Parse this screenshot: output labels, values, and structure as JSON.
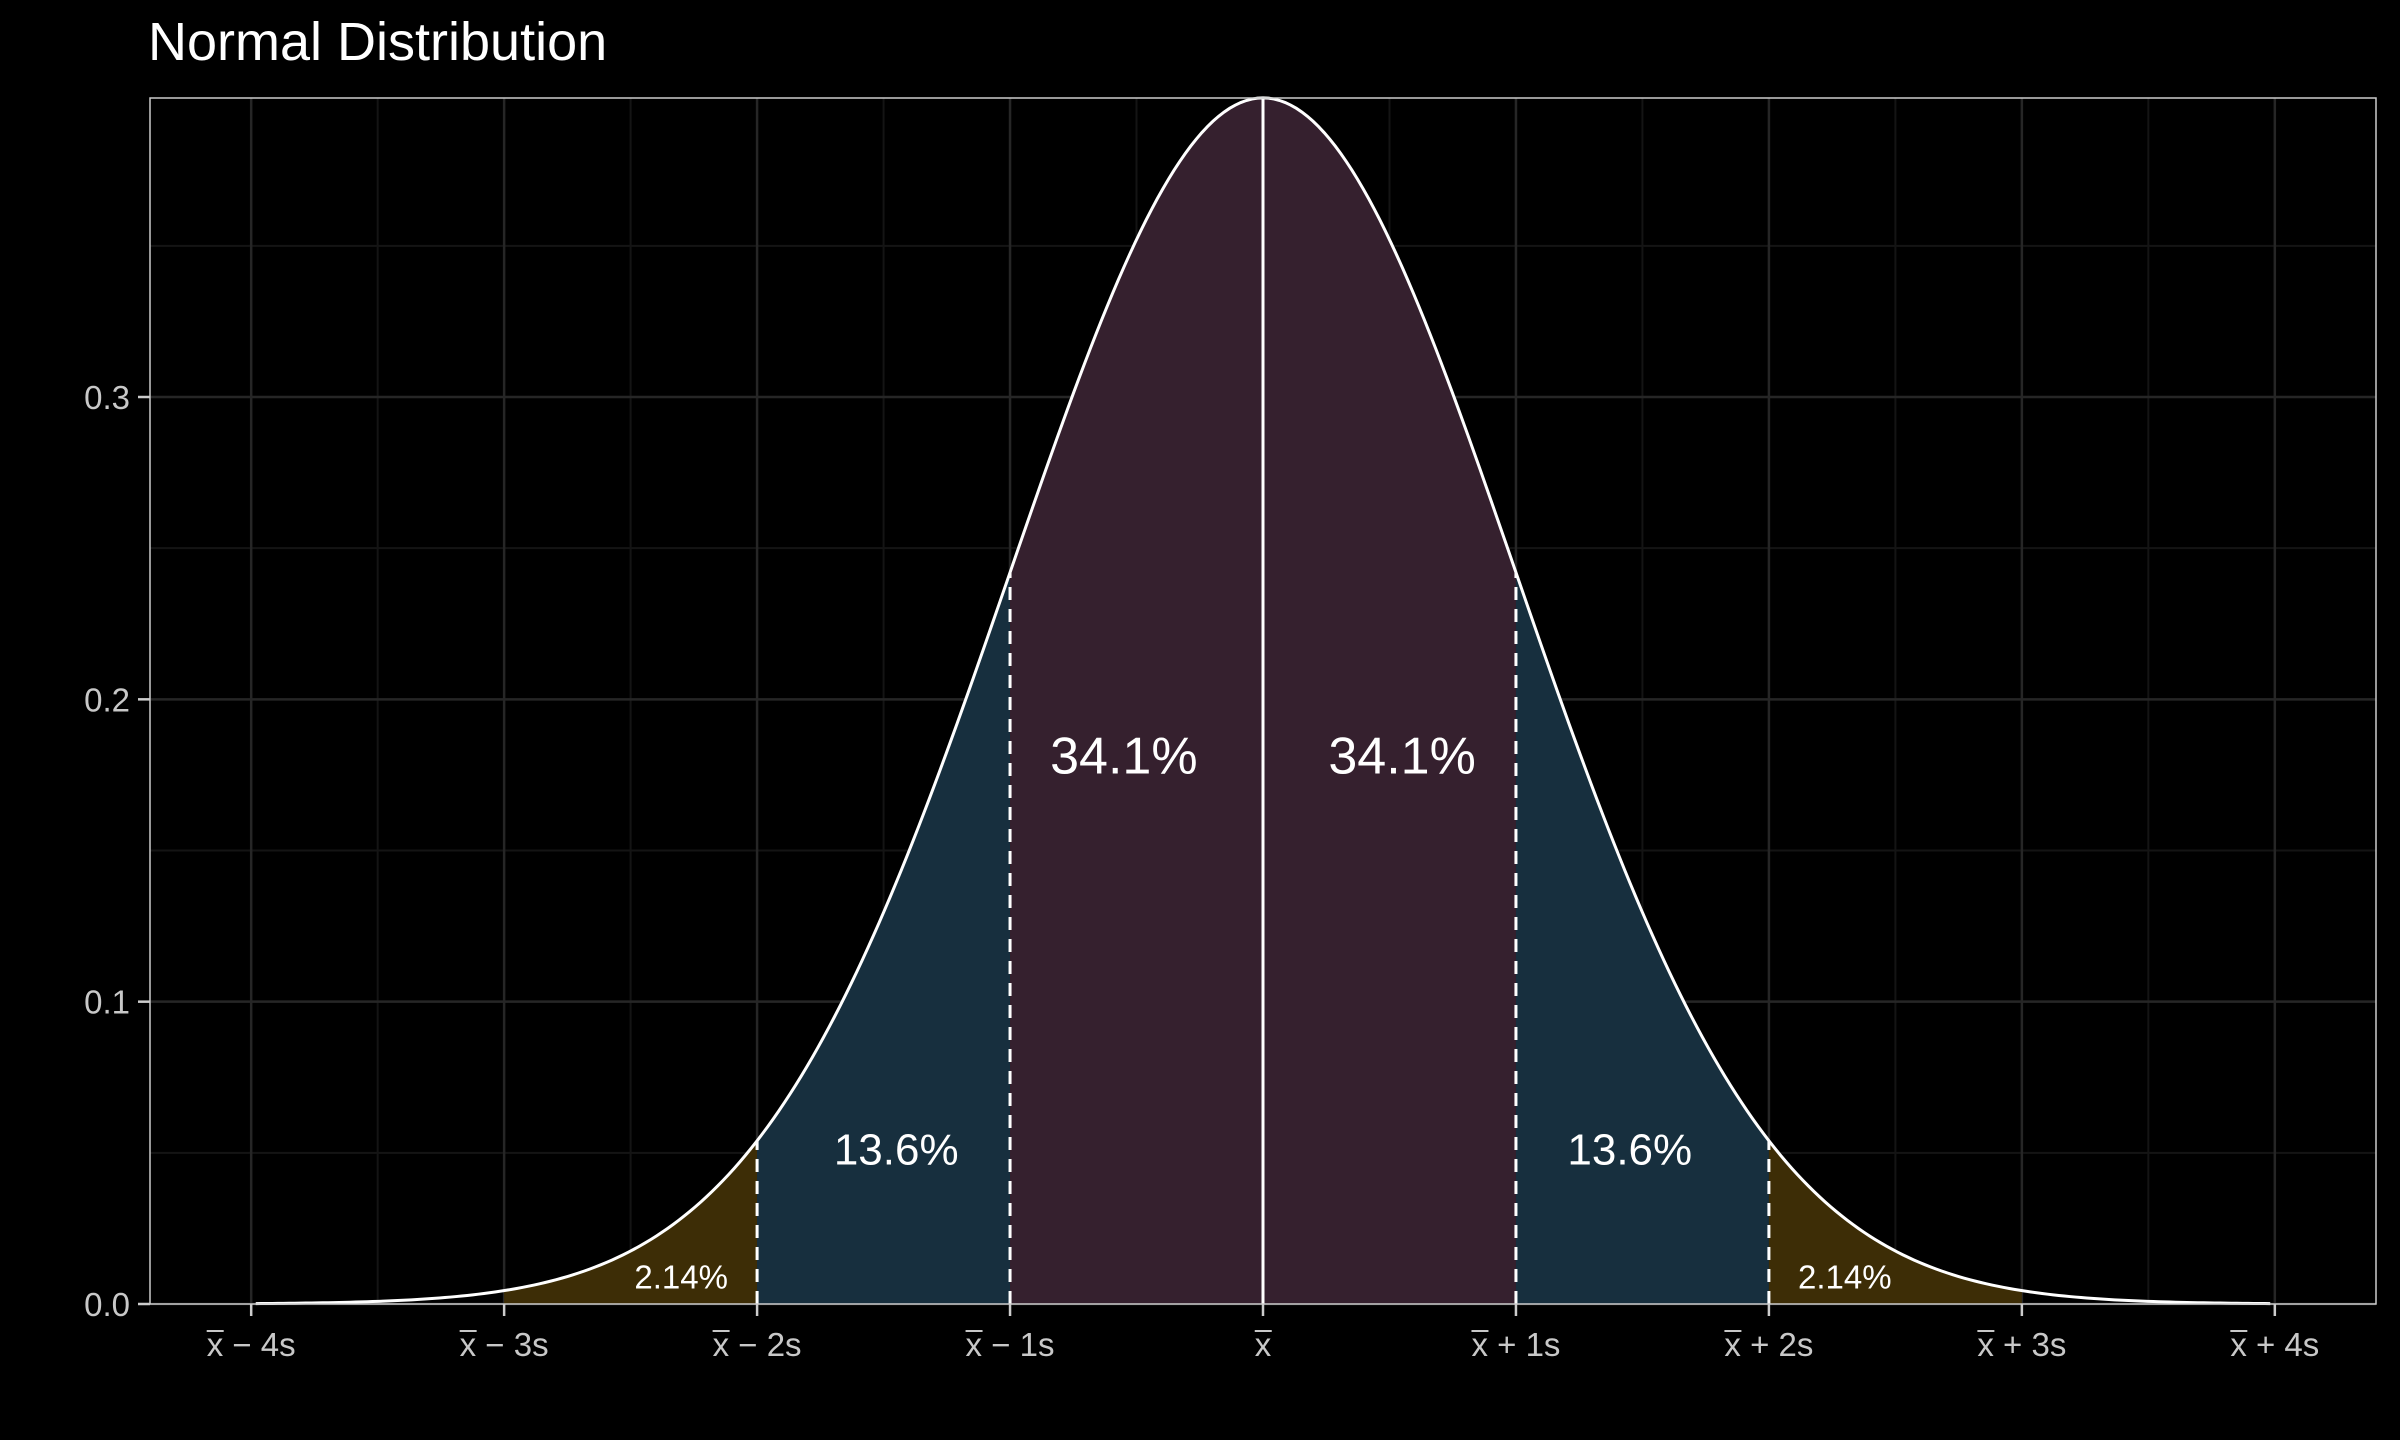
{
  "chart_data": {
    "type": "area",
    "title": "Normal Distribution",
    "xlabel": "",
    "ylabel": "",
    "xlim": [
      -4.4,
      4.4
    ],
    "ylim": [
      0,
      0.3989
    ],
    "x_ticks": [
      {
        "value": -4,
        "label": "x − 4s"
      },
      {
        "value": -3,
        "label": "x − 3s"
      },
      {
        "value": -2,
        "label": "x − 2s"
      },
      {
        "value": -1,
        "label": "x − 1s"
      },
      {
        "value": 0,
        "label": "x"
      },
      {
        "value": 1,
        "label": "x + 1s"
      },
      {
        "value": 2,
        "label": "x + 2s"
      },
      {
        "value": 3,
        "label": "x + 3s"
      },
      {
        "value": 4,
        "label": "x + 4s"
      }
    ],
    "y_ticks": [
      {
        "value": 0.0,
        "label": "0.0"
      },
      {
        "value": 0.1,
        "label": "0.1"
      },
      {
        "value": 0.2,
        "label": "0.2"
      },
      {
        "value": 0.3,
        "label": "0.3"
      }
    ],
    "curve": {
      "mean": 0,
      "sd": 1
    },
    "regions": [
      {
        "from": -3,
        "to": -2,
        "color": "#3d2d06"
      },
      {
        "from": -2,
        "to": -1,
        "color": "#172f3e"
      },
      {
        "from": -1,
        "to": 0,
        "color": "#35202e"
      },
      {
        "from": 0,
        "to": 1,
        "color": "#35202e"
      },
      {
        "from": 1,
        "to": 2,
        "color": "#172f3e"
      },
      {
        "from": 2,
        "to": 3,
        "color": "#3d2d06"
      }
    ],
    "annotations": [
      {
        "label": "34.1%",
        "x": -0.55,
        "y": 0.18,
        "size": "big"
      },
      {
        "label": "34.1%",
        "x": 0.55,
        "y": 0.18,
        "size": "big"
      },
      {
        "label": "13.6%",
        "x": -1.45,
        "y": 0.05,
        "size": "mid"
      },
      {
        "label": "13.6%",
        "x": 1.45,
        "y": 0.05,
        "size": "mid"
      },
      {
        "label": "2.14%",
        "x": -2.3,
        "y": 0.008,
        "size": "small"
      },
      {
        "label": "2.14%",
        "x": 2.3,
        "y": 0.008,
        "size": "small"
      }
    ],
    "dashed_lines_at": [
      -2,
      -1,
      1,
      2
    ],
    "solid_line_at": 0,
    "grid": true,
    "colors": {
      "background": "#000000",
      "curve": "#ffffff",
      "grid_major": "#262626",
      "grid_minor": "#141414",
      "axis": "#cccccc"
    }
  }
}
